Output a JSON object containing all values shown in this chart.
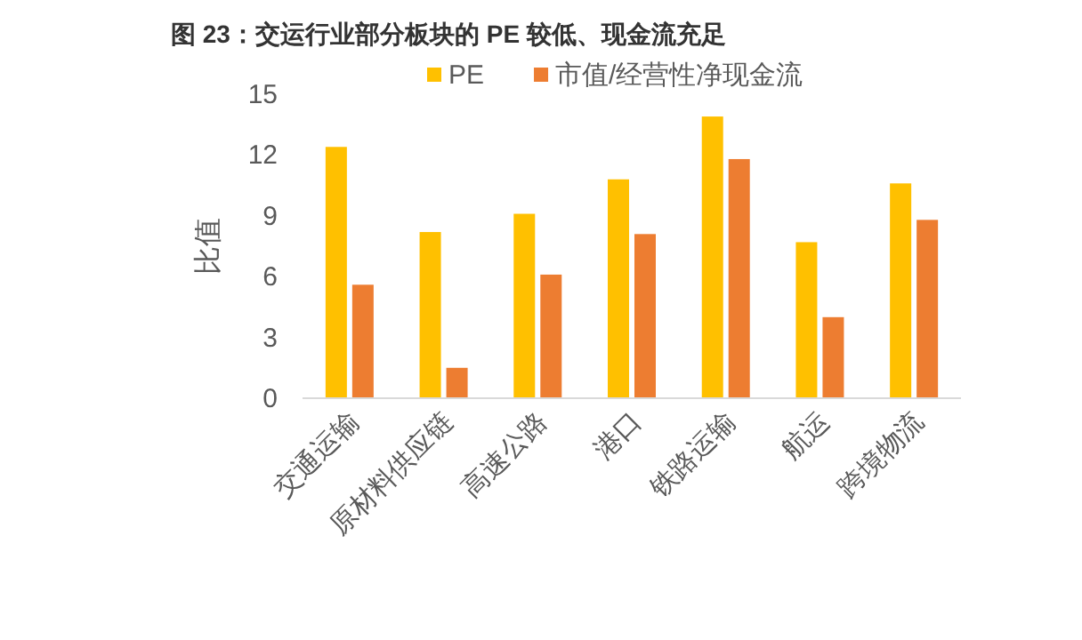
{
  "chart_data": {
    "type": "bar",
    "title": "图 23：交运行业部分板块的 PE 较低、现金流充足",
    "ylabel": "比值",
    "categories": [
      "交通运输",
      "原材料供应链",
      "高速公路",
      "港口",
      "铁路运输",
      "航运",
      "跨境物流"
    ],
    "series": [
      {
        "name": "PE",
        "color": "#ffc000",
        "values": [
          12.4,
          8.2,
          9.1,
          10.8,
          13.9,
          7.7,
          10.6
        ]
      },
      {
        "name": "市值/经营性净现金流",
        "color": "#ed7d31",
        "values": [
          5.6,
          1.5,
          6.1,
          8.1,
          11.8,
          4.0,
          8.8
        ]
      }
    ],
    "ylim": [
      0,
      15
    ],
    "yticks": [
      0,
      3,
      6,
      9,
      12,
      15
    ],
    "grid": false,
    "legend": "top"
  }
}
